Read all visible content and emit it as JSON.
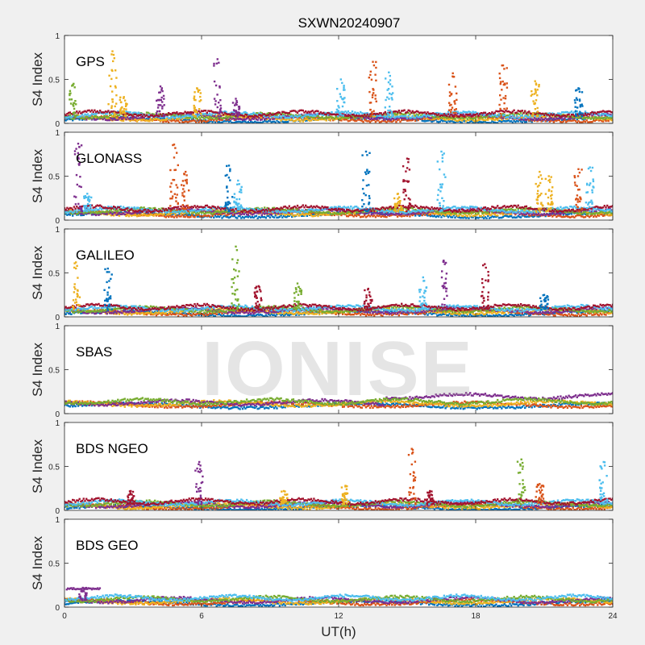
{
  "figure_title": "SXWN20240907",
  "watermark": "IONISE",
  "chart_data": [
    {
      "type": "scatter",
      "label": "GPS",
      "ylabel": "S4 Index",
      "xlim": [
        0,
        24
      ],
      "ylim": [
        0,
        1
      ],
      "xticks": [
        0,
        6,
        12,
        18,
        24
      ],
      "yticks": [
        0,
        0.5,
        1
      ],
      "show_x_ticklabels": false,
      "baseline": 0.08,
      "peaks": [
        {
          "x": 0.4,
          "y": 0.45,
          "color": "#77AC30"
        },
        {
          "x": 2.1,
          "y": 0.82,
          "color": "#EDB120"
        },
        {
          "x": 2.6,
          "y": 0.3,
          "color": "#EDB120"
        },
        {
          "x": 4.2,
          "y": 0.42,
          "color": "#7E2F8E"
        },
        {
          "x": 6.7,
          "y": 0.73,
          "color": "#7E2F8E"
        },
        {
          "x": 5.8,
          "y": 0.4,
          "color": "#EDB120"
        },
        {
          "x": 7.5,
          "y": 0.28,
          "color": "#7E2F8E"
        },
        {
          "x": 12.1,
          "y": 0.5,
          "color": "#4DBEEE"
        },
        {
          "x": 13.5,
          "y": 0.7,
          "color": "#D95319"
        },
        {
          "x": 14.2,
          "y": 0.58,
          "color": "#4DBEEE"
        },
        {
          "x": 17.0,
          "y": 0.57,
          "color": "#D95319"
        },
        {
          "x": 19.2,
          "y": 0.66,
          "color": "#D95319"
        },
        {
          "x": 20.6,
          "y": 0.48,
          "color": "#EDB120"
        },
        {
          "x": 22.5,
          "y": 0.4,
          "color": "#0072BD"
        }
      ]
    },
    {
      "type": "scatter",
      "label": "GLONASS",
      "ylabel": "S4 Index",
      "xlim": [
        0,
        24
      ],
      "ylim": [
        0,
        1
      ],
      "xticks": [
        0,
        6,
        12,
        18,
        24
      ],
      "yticks": [
        0,
        0.5,
        1
      ],
      "show_x_ticklabels": false,
      "baseline": 0.1,
      "peaks": [
        {
          "x": 0.6,
          "y": 0.87,
          "color": "#7E2F8E"
        },
        {
          "x": 1.0,
          "y": 0.3,
          "color": "#4DBEEE"
        },
        {
          "x": 4.8,
          "y": 0.86,
          "color": "#D95319"
        },
        {
          "x": 5.3,
          "y": 0.55,
          "color": "#D95319"
        },
        {
          "x": 7.2,
          "y": 0.62,
          "color": "#0072BD"
        },
        {
          "x": 7.6,
          "y": 0.45,
          "color": "#4DBEEE"
        },
        {
          "x": 13.2,
          "y": 0.78,
          "color": "#0072BD"
        },
        {
          "x": 15.0,
          "y": 0.7,
          "color": "#A2142F"
        },
        {
          "x": 14.6,
          "y": 0.3,
          "color": "#EDB120"
        },
        {
          "x": 16.5,
          "y": 0.78,
          "color": "#4DBEEE"
        },
        {
          "x": 20.8,
          "y": 0.55,
          "color": "#EDB120"
        },
        {
          "x": 21.2,
          "y": 0.5,
          "color": "#EDB120"
        },
        {
          "x": 22.5,
          "y": 0.58,
          "color": "#D95319"
        },
        {
          "x": 23.0,
          "y": 0.6,
          "color": "#4DBEEE"
        }
      ]
    },
    {
      "type": "scatter",
      "label": "GALILEO",
      "ylabel": "S4 Index",
      "xlim": [
        0,
        24
      ],
      "ylim": [
        0,
        1
      ],
      "xticks": [
        0,
        6,
        12,
        18,
        24
      ],
      "yticks": [
        0,
        0.5,
        1
      ],
      "show_x_ticklabels": false,
      "baseline": 0.08,
      "peaks": [
        {
          "x": 0.5,
          "y": 0.62,
          "color": "#EDB120"
        },
        {
          "x": 1.9,
          "y": 0.55,
          "color": "#0072BD"
        },
        {
          "x": 7.5,
          "y": 0.8,
          "color": "#77AC30"
        },
        {
          "x": 8.5,
          "y": 0.35,
          "color": "#A2142F"
        },
        {
          "x": 10.2,
          "y": 0.38,
          "color": "#77AC30"
        },
        {
          "x": 13.3,
          "y": 0.32,
          "color": "#A2142F"
        },
        {
          "x": 15.7,
          "y": 0.45,
          "color": "#4DBEEE"
        },
        {
          "x": 16.6,
          "y": 0.64,
          "color": "#7E2F8E"
        },
        {
          "x": 18.4,
          "y": 0.6,
          "color": "#A2142F"
        },
        {
          "x": 21.0,
          "y": 0.25,
          "color": "#0072BD"
        }
      ]
    },
    {
      "type": "scatter",
      "label": "SBAS",
      "ylabel": "S4 Index",
      "xlim": [
        0,
        24
      ],
      "ylim": [
        0,
        1
      ],
      "xticks": [
        0,
        6,
        12,
        18,
        24
      ],
      "yticks": [
        0,
        0.5,
        1
      ],
      "show_x_ticklabels": false,
      "baseline": 0.12,
      "peaks": []
    },
    {
      "type": "scatter",
      "label": "BDS NGEO",
      "ylabel": "S4 Index",
      "xlim": [
        0,
        24
      ],
      "ylim": [
        0,
        1
      ],
      "xticks": [
        0,
        6,
        12,
        18,
        24
      ],
      "yticks": [
        0,
        0.5,
        1
      ],
      "show_x_ticklabels": false,
      "baseline": 0.07,
      "peaks": [
        {
          "x": 5.9,
          "y": 0.55,
          "color": "#7E2F8E"
        },
        {
          "x": 2.9,
          "y": 0.22,
          "color": "#A2142F"
        },
        {
          "x": 9.6,
          "y": 0.22,
          "color": "#EDB120"
        },
        {
          "x": 12.3,
          "y": 0.28,
          "color": "#EDB120"
        },
        {
          "x": 15.2,
          "y": 0.7,
          "color": "#D95319"
        },
        {
          "x": 16.0,
          "y": 0.22,
          "color": "#A2142F"
        },
        {
          "x": 20.0,
          "y": 0.58,
          "color": "#77AC30"
        },
        {
          "x": 20.8,
          "y": 0.3,
          "color": "#D95319"
        },
        {
          "x": 23.6,
          "y": 0.55,
          "color": "#4DBEEE"
        }
      ]
    },
    {
      "type": "scatter",
      "label": "BDS GEO",
      "ylabel": "S4 Index",
      "xlabel": "UT(h)",
      "xlim": [
        0,
        24
      ],
      "ylim": [
        0,
        1
      ],
      "xticks": [
        0,
        6,
        12,
        18,
        24
      ],
      "yticks": [
        0,
        0.5,
        1
      ],
      "show_x_ticklabels": true,
      "baseline": 0.08,
      "peaks": [
        {
          "x": 0.8,
          "y": 0.22,
          "color": "#7E2F8E"
        }
      ]
    }
  ],
  "palette": [
    "#0072BD",
    "#D95319",
    "#EDB120",
    "#7E2F8E",
    "#77AC30",
    "#4DBEEE",
    "#A2142F"
  ]
}
